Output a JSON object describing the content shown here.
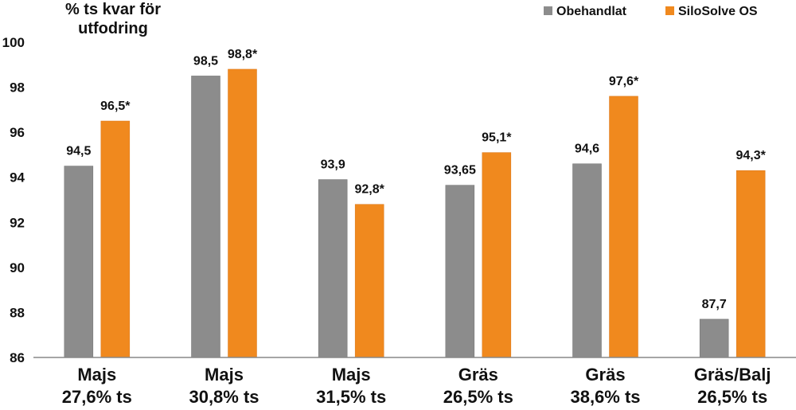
{
  "chart_data": {
    "type": "bar",
    "ylabel": [
      "% ts kvar för",
      "utfodring"
    ],
    "ylim": [
      86,
      100
    ],
    "yticks": [
      86,
      88,
      90,
      92,
      94,
      96,
      98,
      100
    ],
    "categories": [
      [
        "Majs",
        "27,6% ts"
      ],
      [
        "Majs",
        "30,8% ts"
      ],
      [
        "Majs",
        "31,5% ts"
      ],
      [
        "Gräs",
        "26,5% ts"
      ],
      [
        "Gräs",
        "38,6% ts"
      ],
      [
        "Gräs/Balj",
        "26,5% ts"
      ]
    ],
    "series": [
      {
        "name": "Obehandlat",
        "color": "#8c8c8c",
        "values": [
          94.5,
          98.5,
          93.9,
          93.65,
          94.6,
          87.7
        ],
        "labels": [
          "94,5",
          "98,5",
          "93,9",
          "93,65",
          "94,6",
          "87,7"
        ]
      },
      {
        "name": "SiloSolve OS",
        "color": "#f0891e",
        "values": [
          96.5,
          98.8,
          92.8,
          95.1,
          97.6,
          94.3
        ],
        "labels": [
          "96,5*",
          "98,8*",
          "92,8*",
          "95,1*",
          "97,6*",
          "94,3*"
        ]
      }
    ],
    "legend_position": "top-right",
    "grid": false
  }
}
